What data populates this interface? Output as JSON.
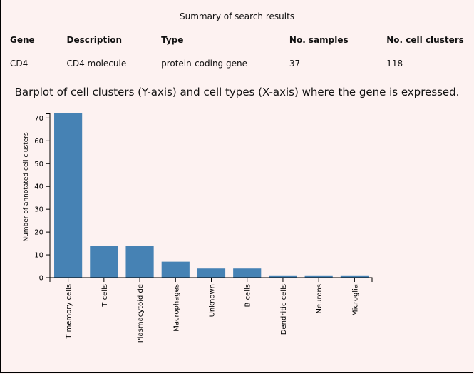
{
  "summary": {
    "caption": "Summary of search results",
    "headers": [
      "Gene",
      "Description",
      "Type",
      "No. samples",
      "No. cell clusters"
    ],
    "rows": [
      [
        "CD4",
        "CD4 molecule",
        "protein-coding gene",
        "37",
        "118"
      ]
    ]
  },
  "chart_title": "Barplot of cell clusters (Y-axis) and cell types (X-axis) where the gene is expressed.",
  "chart_data": {
    "type": "bar",
    "title": "Barplot of cell clusters (Y-axis) and cell types (X-axis) where the gene is expressed.",
    "categories": [
      "T memory cells",
      "T cells",
      "Plasmacytoid de",
      "Macrophages",
      "Unknown",
      "B cells",
      "Dendritic cells",
      "Neurons",
      "Microglia"
    ],
    "values": [
      72,
      14,
      14,
      7,
      4,
      4,
      1,
      1,
      1
    ],
    "xlabel": "",
    "ylabel": "Number of annotated cell clusters",
    "ylim": [
      0,
      72
    ],
    "yticks": [
      0,
      10,
      20,
      30,
      40,
      50,
      60,
      70
    ],
    "grid": false,
    "bar_color": "#4682b4"
  }
}
